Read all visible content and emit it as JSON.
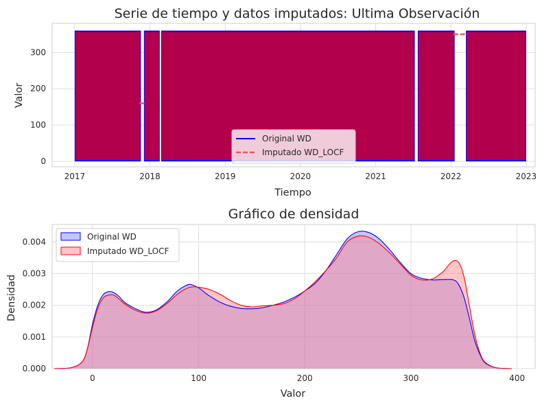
{
  "chart_data": [
    {
      "type": "line",
      "title": "Serie de tiempo y datos imputados: Ultima Observación",
      "xlabel": "Tiempo",
      "ylabel": "Valor",
      "x_ticks": [
        "2017",
        "2018",
        "2019",
        "2020",
        "2021",
        "2022",
        "2023"
      ],
      "y_ticks": [
        "0",
        "100",
        "200",
        "300"
      ],
      "xlim": [
        2016.7,
        2023.12
      ],
      "ylim": [
        -15,
        380
      ],
      "grid": true,
      "legend_position": "lower-center",
      "value_range": [
        0,
        360
      ],
      "series": [
        {
          "name": "Original WD",
          "color": "#0000ff",
          "style": "solid",
          "segments": [
            [
              2017.0,
              2017.88
            ],
            [
              2017.92,
              2018.13
            ],
            [
              2018.15,
              2021.52
            ],
            [
              2021.56,
              2022.05
            ],
            [
              2022.2,
              2023.0
            ]
          ]
        },
        {
          "name": "Imputado WD_LOCF",
          "color": "#c8003a",
          "style": "dashed",
          "segments": [
            [
              2017.0,
              2023.0
            ]
          ],
          "gap_fill_values": [
            {
              "x0": 2017.88,
              "x1": 2017.92,
              "y": 160
            },
            {
              "x0": 2022.05,
              "x1": 2022.2,
              "y": 350
            }
          ]
        }
      ]
    },
    {
      "type": "area",
      "title": "Gráfico de densidad",
      "xlabel": "Valor",
      "ylabel": "Densidad",
      "x_ticks": [
        "0",
        "100",
        "200",
        "300",
        "400"
      ],
      "y_ticks": [
        "0.000",
        "0.001",
        "0.002",
        "0.003",
        "0.004"
      ],
      "xlim": [
        -38,
        417
      ],
      "ylim": [
        0,
        0.00455
      ],
      "grid": true,
      "legend_position": "upper-left",
      "series": [
        {
          "name": "Original WD",
          "color": "#0000ff",
          "fill": "#8080ff",
          "x": [
            -36,
            -20,
            -10,
            -5,
            0,
            5,
            10,
            15,
            20,
            25,
            30,
            40,
            50,
            60,
            70,
            80,
            90,
            95,
            100,
            110,
            120,
            130,
            140,
            150,
            160,
            170,
            180,
            190,
            200,
            210,
            220,
            230,
            240,
            250,
            260,
            270,
            280,
            290,
            300,
            310,
            320,
            330,
            340,
            345,
            350,
            355,
            360,
            365,
            370,
            380,
            395
          ],
          "y": [
            0,
            3e-05,
            0.0002,
            0.0006,
            0.0014,
            0.002,
            0.00233,
            0.00243,
            0.0024,
            0.00228,
            0.0021,
            0.0019,
            0.00178,
            0.00185,
            0.0021,
            0.00245,
            0.00265,
            0.00263,
            0.00255,
            0.0023,
            0.0021,
            0.00197,
            0.0019,
            0.00189,
            0.00192,
            0.002,
            0.0021,
            0.00225,
            0.00245,
            0.0027,
            0.0031,
            0.0036,
            0.0041,
            0.00432,
            0.0043,
            0.0041,
            0.00375,
            0.00335,
            0.003,
            0.00285,
            0.0028,
            0.00281,
            0.0028,
            0.00265,
            0.00225,
            0.0016,
            0.0009,
            0.00045,
            0.00018,
            3e-05,
            0
          ]
        },
        {
          "name": "Imputado WD_LOCF",
          "color": "#ff0000",
          "fill": "#ff8080",
          "x": [
            -36,
            -20,
            -10,
            -5,
            0,
            5,
            10,
            15,
            20,
            25,
            30,
            40,
            50,
            60,
            70,
            80,
            90,
            95,
            100,
            110,
            120,
            130,
            140,
            150,
            160,
            170,
            180,
            190,
            200,
            210,
            220,
            230,
            240,
            250,
            260,
            270,
            280,
            290,
            300,
            310,
            320,
            330,
            335,
            340,
            345,
            350,
            355,
            360,
            365,
            370,
            380,
            395
          ],
          "y": [
            0,
            3e-05,
            0.0002,
            0.0006,
            0.0013,
            0.0019,
            0.00223,
            0.00232,
            0.00232,
            0.0022,
            0.00205,
            0.00185,
            0.00175,
            0.00182,
            0.00205,
            0.00235,
            0.00255,
            0.00258,
            0.00257,
            0.0025,
            0.00235,
            0.00215,
            0.002,
            0.00195,
            0.00198,
            0.002,
            0.00205,
            0.0022,
            0.00245,
            0.00275,
            0.0031,
            0.0035,
            0.004,
            0.00418,
            0.00415,
            0.00395,
            0.00365,
            0.0033,
            0.00295,
            0.0028,
            0.00283,
            0.00305,
            0.00325,
            0.0034,
            0.00335,
            0.0029,
            0.002,
            0.0011,
            0.0005,
            0.0002,
            3e-05,
            0
          ]
        }
      ]
    }
  ]
}
